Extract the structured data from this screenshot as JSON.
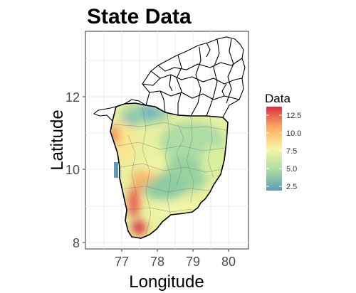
{
  "title": "State Data",
  "x_axis": {
    "title": "Longitude",
    "ticks": [
      "77",
      "78",
      "79",
      "80"
    ]
  },
  "y_axis": {
    "title": "Latitude",
    "ticks": [
      "8",
      "10",
      "12"
    ]
  },
  "legend": {
    "title": "Data",
    "labels": [
      "12.5",
      "10.0",
      "7.5",
      "5.0",
      "2.5"
    ],
    "palette": [
      "#5e9cb8",
      "#abdda4",
      "#f7f5a8",
      "#fdae61",
      "#d7303f"
    ]
  },
  "chart_data": {
    "type": "heatmap",
    "title": "State Data",
    "xlabel": "Longitude",
    "ylabel": "Latitude",
    "xlim": [
      76.0,
      80.6
    ],
    "ylim": [
      7.85,
      13.95
    ],
    "x_ticks": [
      77,
      78,
      79,
      80
    ],
    "y_ticks": [
      8,
      10,
      12
    ],
    "color_scale": {
      "name": "Data",
      "min": 2.5,
      "max": 13.5,
      "ticks": [
        12.5,
        10.0,
        7.5,
        5.0,
        2.5
      ]
    },
    "grid": true,
    "legend_position": "right"
  }
}
